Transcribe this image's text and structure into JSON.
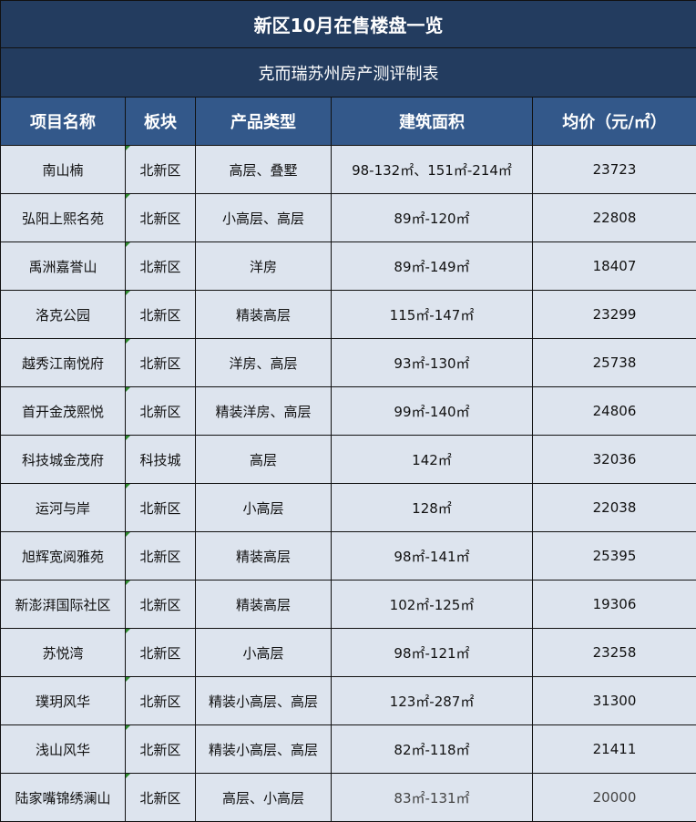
{
  "title": "新区10月在售楼盘一览",
  "subtitle": "克而瑞苏州房产测评制表",
  "columns": [
    "项目名称",
    "板块",
    "产品类型",
    "建筑面积",
    "均价（元/㎡）"
  ],
  "rows": [
    [
      "南山楠",
      "北新区",
      "高层、叠墅",
      "98-132㎡、151㎡-214㎡",
      "23723"
    ],
    [
      "弘阳上熙名苑",
      "北新区",
      "小高层、高层",
      "89㎡-120㎡",
      "22808"
    ],
    [
      "禹洲嘉誉山",
      "北新区",
      "洋房",
      "89㎡-149㎡",
      "18407"
    ],
    [
      "洛克公园",
      "北新区",
      "精装高层",
      "115㎡-147㎡",
      "23299"
    ],
    [
      "越秀江南悦府",
      "北新区",
      "洋房、高层",
      "93㎡-130㎡",
      "25738"
    ],
    [
      "首开金茂熙悦",
      "北新区",
      "精装洋房、高层",
      "99㎡-140㎡",
      "24806"
    ],
    [
      "科技城金茂府",
      "科技城",
      "高层",
      "142㎡",
      "32036"
    ],
    [
      "运河与岸",
      "北新区",
      "小高层",
      "128㎡",
      "22038"
    ],
    [
      "旭辉宽阅雅苑",
      "北新区",
      "精装高层",
      "98㎡-141㎡",
      "25395"
    ],
    [
      "新澎湃国际社区",
      "北新区",
      "精装高层",
      "102㎡-125㎡",
      "19306"
    ],
    [
      "苏悦湾",
      "北新区",
      "小高层",
      "98㎡-121㎡",
      "23258"
    ],
    [
      "璞玥风华",
      "北新区",
      "精装小高层、高层",
      "123㎡-287㎡",
      "31300"
    ],
    [
      "浅山风华",
      "北新区",
      "精装小高层、高层",
      "82㎡-118㎡",
      "21411"
    ],
    [
      "陆家嘴锦绣澜山",
      "北新区",
      "高层、小高层",
      "83㎡-131㎡",
      "20000"
    ]
  ],
  "colors": {
    "title_bg": "#233c5f",
    "header_bg": "#33588a",
    "row_bg": "#dde4ee"
  }
}
